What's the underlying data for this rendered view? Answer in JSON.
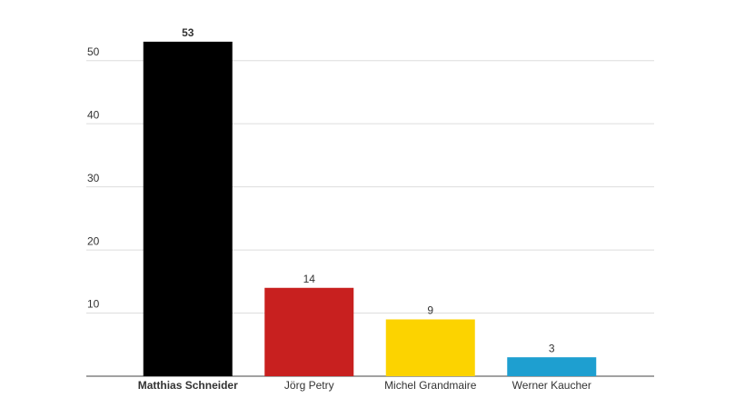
{
  "chart_data": {
    "type": "bar",
    "categories": [
      "Matthias Schneider",
      "Jörg Petry",
      "Michel Grandmaire",
      "Werner Kaucher"
    ],
    "values": [
      53,
      14,
      9,
      3
    ],
    "colors": [
      "#000000",
      "#c8201f",
      "#fcd300",
      "#1e9fd0"
    ],
    "font_weight": [
      "bold",
      "normal",
      "normal",
      "normal"
    ],
    "ylim": [
      0,
      55
    ],
    "yticks": [
      10,
      20,
      30,
      40,
      50
    ],
    "grid": true
  }
}
